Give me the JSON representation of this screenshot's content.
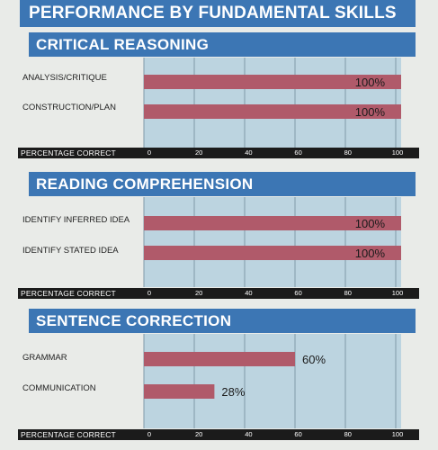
{
  "page_title": "PERFORMANCE BY FUNDAMENTAL SKILLS",
  "colors": {
    "header_blue": "#3c76b4",
    "bar_fill": "#b05a6a",
    "plot_bg": "#bcd4e0",
    "axis_strip": "#1b1b1b"
  },
  "chart_data": [
    {
      "type": "bar",
      "orientation": "horizontal",
      "title": "CRITICAL REASONING",
      "categories": [
        "ANALYSIS/CRITIQUE",
        "CONSTRUCTION/PLAN"
      ],
      "values": [
        100,
        100
      ],
      "value_labels": [
        "100%",
        "100%"
      ],
      "xlabel": "PERCENTAGE CORRECT",
      "xticks": [
        "0",
        "20",
        "40",
        "60",
        "80",
        "100"
      ],
      "xlim": [
        0,
        100
      ],
      "grid": true
    },
    {
      "type": "bar",
      "orientation": "horizontal",
      "title": "READING COMPREHENSION",
      "categories": [
        "IDENTIFY INFERRED IDEA",
        "IDENTIFY STATED IDEA"
      ],
      "values": [
        100,
        100
      ],
      "value_labels": [
        "100%",
        "100%"
      ],
      "xlabel": "PERCENTAGE CORRECT",
      "xticks": [
        "0",
        "20",
        "40",
        "60",
        "80",
        "100"
      ],
      "xlim": [
        0,
        100
      ],
      "grid": true
    },
    {
      "type": "bar",
      "orientation": "horizontal",
      "title": "SENTENCE CORRECTION",
      "categories": [
        "GRAMMAR",
        "COMMUNICATION"
      ],
      "values": [
        60,
        28
      ],
      "value_labels": [
        "60%",
        "28%"
      ],
      "xlabel": "PERCENTAGE CORRECT",
      "xticks": [
        "0",
        "20",
        "40",
        "60",
        "80",
        "100"
      ],
      "xlim": [
        0,
        100
      ],
      "grid": true
    }
  ]
}
